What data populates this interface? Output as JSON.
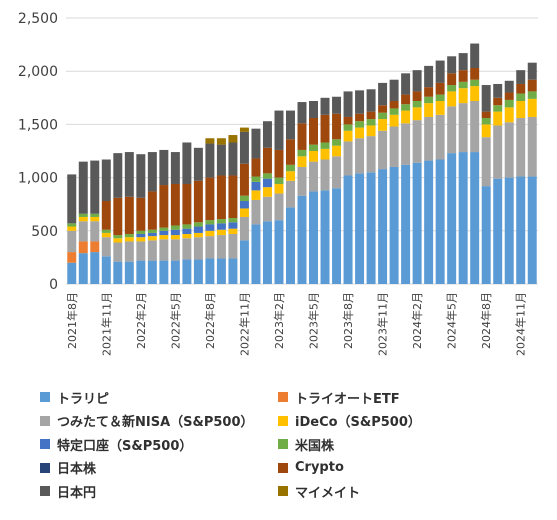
{
  "chart_data": {
    "type": "bar",
    "stacked": true,
    "title": "",
    "xlabel": "",
    "ylabel": "",
    "ylim": [
      0,
      2500
    ],
    "yticks": [
      "0",
      "500",
      "1,000",
      "1,500",
      "2,000",
      "2,500"
    ],
    "grid": true,
    "legend_position": "bottom",
    "categories": [
      "2021年8月",
      "2021年9月",
      "2021年10月",
      "2021年11月",
      "2021年12月",
      "2022年1月",
      "2022年2月",
      "2022年3月",
      "2022年4月",
      "2022年5月",
      "2022年6月",
      "2022年7月",
      "2022年8月",
      "2022年9月",
      "2022年10月",
      "2022年11月",
      "2022年12月",
      "2023年1月",
      "2023年2月",
      "2023年3月",
      "2023年4月",
      "2023年5月",
      "2023年6月",
      "2023年7月",
      "2023年8月",
      "2023年9月",
      "2023年10月",
      "2023年11月",
      "2023年12月",
      "2024年1月",
      "2024年2月",
      "2024年3月",
      "2024年4月",
      "2024年5月",
      "2024年6月",
      "2024年7月",
      "2024年8月",
      "2024年9月",
      "2024年10月",
      "2024年11月",
      "2024年12月"
    ],
    "tick_labels": [
      "2021年8月",
      "",
      "",
      "2021年11月",
      "",
      "",
      "2022年2月",
      "",
      "",
      "2022年5月",
      "",
      "",
      "2022年8月",
      "",
      "",
      "2022年11月",
      "",
      "",
      "2023年2月",
      "",
      "",
      "2023年5月",
      "",
      "",
      "2023年8月",
      "",
      "",
      "2023年11月",
      "",
      "",
      "2024年2月",
      "",
      "",
      "2024年5月",
      "",
      "",
      "2024年8月",
      "",
      "",
      "2024年11月",
      ""
    ],
    "series": [
      {
        "name": "トラリピ",
        "color": "#5B9BD5",
        "values": [
          200,
          290,
          300,
          260,
          210,
          210,
          220,
          220,
          220,
          220,
          230,
          230,
          240,
          240,
          240,
          410,
          560,
          590,
          600,
          720,
          830,
          870,
          880,
          900,
          1020,
          1040,
          1050,
          1080,
          1100,
          1120,
          1140,
          1160,
          1170,
          1230,
          1240,
          1240,
          920,
          990,
          1000,
          1010,
          1010
        ]
      },
      {
        "name": "トライオートETF",
        "color": "#ED7D31",
        "values": [
          100,
          110,
          100,
          0,
          0,
          0,
          0,
          0,
          0,
          0,
          0,
          0,
          0,
          0,
          0,
          0,
          0,
          0,
          0,
          0,
          0,
          0,
          0,
          0,
          0,
          0,
          0,
          0,
          0,
          0,
          0,
          0,
          0,
          0,
          0,
          0,
          0,
          0,
          0,
          0,
          0
        ]
      },
      {
        "name": "つみたて＆新NISA（S&P500）",
        "color": "#A5A5A5",
        "values": [
          200,
          190,
          190,
          180,
          180,
          190,
          180,
          190,
          200,
          200,
          200,
          210,
          210,
          220,
          230,
          220,
          230,
          230,
          250,
          250,
          270,
          280,
          290,
          300,
          320,
          330,
          340,
          360,
          380,
          390,
          400,
          410,
          420,
          440,
          460,
          480,
          460,
          500,
          520,
          550,
          560
        ]
      },
      {
        "name": "iDeCo（S&P500）",
        "color": "#FFC000",
        "values": [
          40,
          40,
          40,
          40,
          40,
          40,
          40,
          40,
          40,
          40,
          40,
          40,
          50,
          50,
          50,
          80,
          90,
          90,
          90,
          90,
          100,
          100,
          100,
          100,
          100,
          100,
          100,
          110,
          110,
          120,
          120,
          130,
          130,
          140,
          140,
          140,
          120,
          130,
          140,
          160,
          170
        ]
      },
      {
        "name": "特定口座（S&P500）",
        "color": "#4472C4",
        "values": [
          0,
          0,
          0,
          0,
          0,
          0,
          30,
          30,
          40,
          50,
          50,
          60,
          60,
          60,
          60,
          70,
          80,
          80,
          0,
          0,
          0,
          0,
          0,
          0,
          0,
          0,
          0,
          0,
          0,
          0,
          0,
          0,
          0,
          0,
          0,
          0,
          0,
          0,
          0,
          0,
          0
        ]
      },
      {
        "name": "米国株",
        "color": "#70AD47",
        "values": [
          30,
          30,
          30,
          30,
          30,
          30,
          30,
          30,
          30,
          40,
          40,
          40,
          40,
          40,
          40,
          50,
          50,
          50,
          60,
          60,
          60,
          60,
          60,
          60,
          60,
          60,
          60,
          60,
          60,
          60,
          60,
          60,
          60,
          60,
          60,
          60,
          60,
          60,
          70,
          70,
          70
        ]
      },
      {
        "name": "日本株",
        "color": "#264478",
        "values": [
          0,
          0,
          0,
          0,
          0,
          0,
          0,
          0,
          0,
          0,
          0,
          0,
          0,
          0,
          0,
          0,
          0,
          0,
          0,
          0,
          0,
          0,
          0,
          0,
          0,
          0,
          0,
          0,
          0,
          0,
          0,
          0,
          0,
          0,
          0,
          0,
          0,
          0,
          0,
          0,
          0
        ]
      },
      {
        "name": "Crypto",
        "color": "#9E480E",
        "values": [
          0,
          0,
          0,
          270,
          350,
          350,
          310,
          360,
          400,
          390,
          380,
          390,
          400,
          410,
          400,
          300,
          170,
          240,
          260,
          240,
          250,
          250,
          260,
          240,
          70,
          70,
          70,
          70,
          70,
          90,
          90,
          90,
          110,
          110,
          110,
          110,
          60,
          70,
          70,
          90,
          110
        ]
      },
      {
        "name": "日本円",
        "color": "#595959",
        "values": [
          460,
          490,
          500,
          390,
          420,
          420,
          410,
          370,
          330,
          300,
          390,
          310,
          320,
          290,
          310,
          300,
          280,
          250,
          370,
          270,
          200,
          160,
          160,
          160,
          240,
          220,
          210,
          210,
          200,
          200,
          200,
          200,
          210,
          160,
          160,
          230,
          250,
          130,
          110,
          130,
          160
        ]
      },
      {
        "name": "マイメイト",
        "color": "#997300",
        "values": [
          0,
          0,
          0,
          0,
          0,
          0,
          0,
          0,
          0,
          0,
          0,
          0,
          50,
          60,
          70,
          40,
          0,
          0,
          0,
          0,
          0,
          0,
          0,
          0,
          0,
          0,
          0,
          0,
          0,
          0,
          0,
          0,
          0,
          0,
          0,
          0,
          0,
          0,
          0,
          0,
          0
        ]
      }
    ]
  }
}
